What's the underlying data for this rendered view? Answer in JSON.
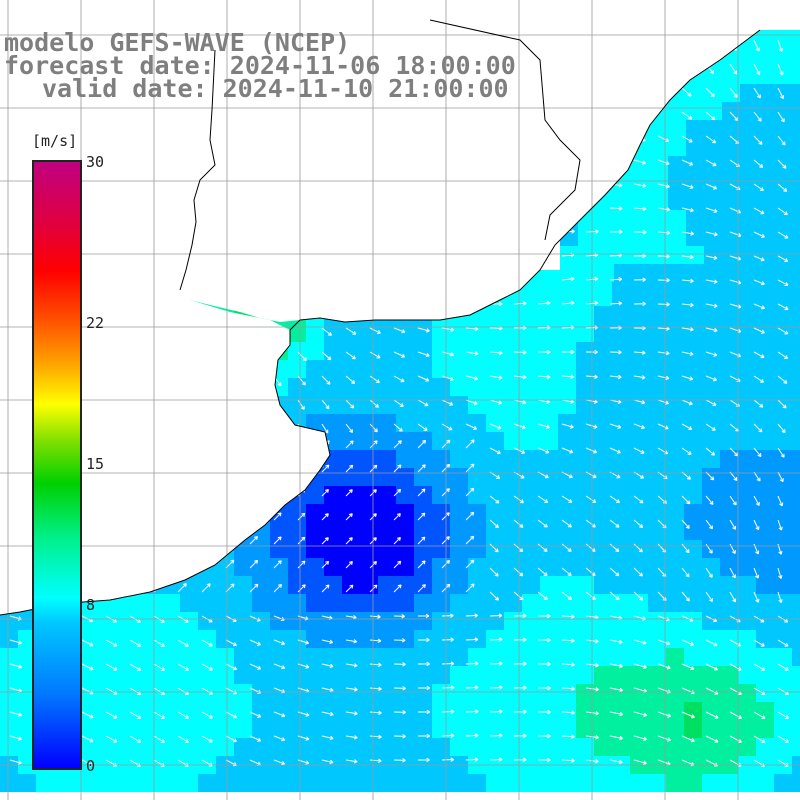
{
  "title": {
    "line1": "modelo GEFS-WAVE (NCEP)",
    "line2": "forecast date: 2024-11-06 18:00:00",
    "line3": "valid date: 2024-11-10 21:00:00"
  },
  "colorbar": {
    "unit": "[m/s]",
    "ticks": [
      "30",
      "22",
      "15",
      "8",
      "0"
    ],
    "tick_values": [
      30,
      22,
      15,
      8,
      0
    ],
    "min": 0,
    "max": 30
  },
  "map": {
    "field": "wind speed and direction",
    "region": "South Atlantic off Uruguay / Rio de la Plata",
    "colors": {
      "land": "#ffffff",
      "coastline": "#000000",
      "graticule": "#9a9a9a",
      "arrows": "#ffffff",
      "label_text": "#9a9a9a"
    }
  }
}
